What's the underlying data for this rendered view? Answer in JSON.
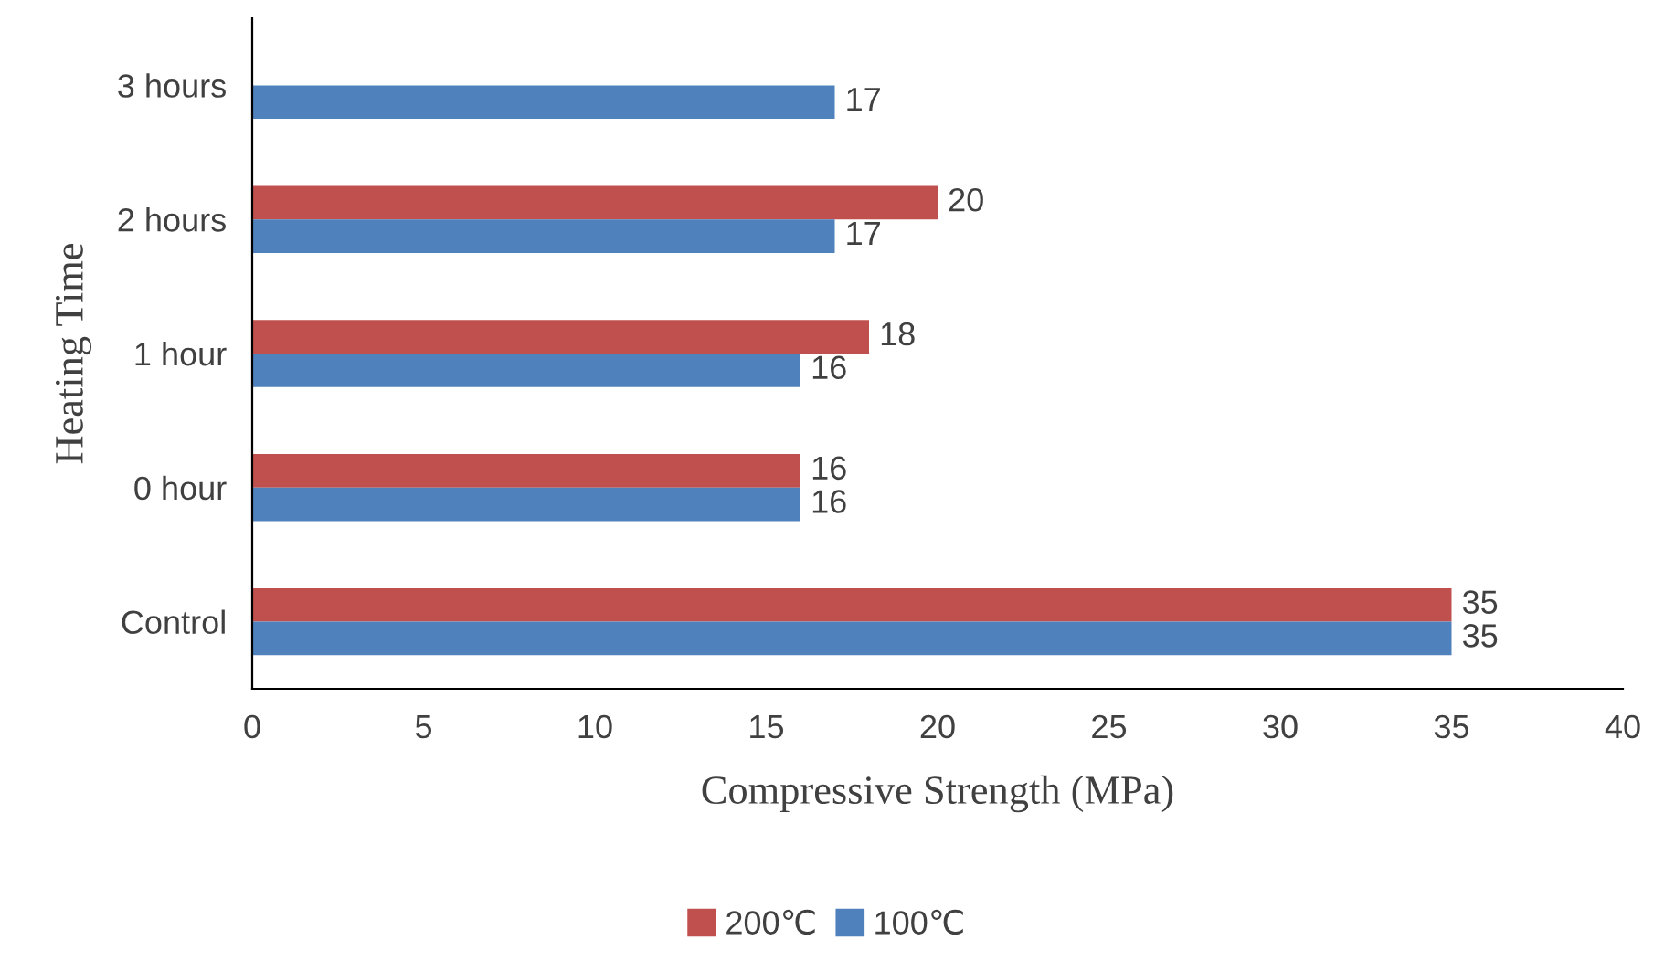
{
  "chart_data": {
    "type": "bar",
    "orientation": "horizontal",
    "xlabel": "Compressive Strength (MPa)",
    "ylabel": "Heating Time",
    "categories": [
      "3 hours",
      "2 hours",
      "1 hour",
      "0 hour",
      "Control"
    ],
    "series": [
      {
        "name": "200℃",
        "color": "#c0504d",
        "values": [
          null,
          20,
          18,
          16,
          35
        ]
      },
      {
        "name": "100℃",
        "color": "#4f81bd",
        "values": [
          17,
          17,
          16,
          16,
          35
        ]
      }
    ],
    "xlim": [
      0,
      40
    ],
    "xticks": [
      0,
      5,
      10,
      15,
      20,
      25,
      30,
      35,
      40
    ],
    "grid": false,
    "legend": "bottom",
    "data_labels": true
  }
}
